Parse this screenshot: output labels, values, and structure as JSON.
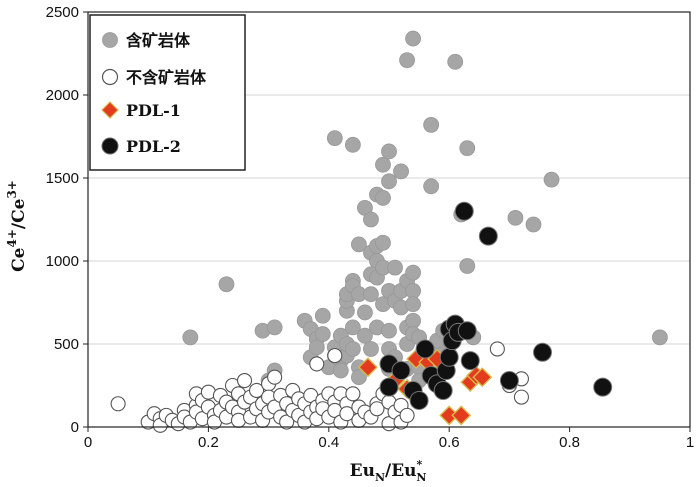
{
  "chart_data": {
    "type": "scatter",
    "xlim": [
      0,
      1
    ],
    "ylim": [
      0,
      2500
    ],
    "x_ticks": [
      0,
      0.2,
      0.4,
      0.6,
      0.8,
      1
    ],
    "x_tick_labels": [
      "0",
      "0.2",
      "0.4",
      "0.6",
      "0.8",
      "1"
    ],
    "y_ticks": [
      0,
      500,
      1000,
      1500,
      2000,
      2500
    ],
    "y_tick_labels": [
      "0",
      "500",
      "1000",
      "1500",
      "2000",
      "2500"
    ],
    "xlabel": {
      "main": "Eu",
      "sub1": "N",
      "slash": "/Eu",
      "sup": "*",
      "sub2": "N"
    },
    "ylabel": {
      "part1": "Ce",
      "sup1": "4+",
      "mid": "/Ce",
      "sup2": "3+"
    },
    "grid": "horizontal",
    "legend_position": "top-left",
    "colors": {
      "gray": "#a6a6a6",
      "white": "#ffffff",
      "diamond_fill": "#e23b1e",
      "diamond_edge": "#d9b94a",
      "black": "#111111"
    },
    "series": [
      {
        "name": "含矿岩体",
        "marker": "circle-gray",
        "points": [
          [
            0.17,
            540
          ],
          [
            0.23,
            860
          ],
          [
            0.29,
            580
          ],
          [
            0.31,
            600
          ],
          [
            0.31,
            340
          ],
          [
            0.3,
            280
          ],
          [
            0.36,
            640
          ],
          [
            0.37,
            590
          ],
          [
            0.38,
            530
          ],
          [
            0.37,
            420
          ],
          [
            0.38,
            480
          ],
          [
            0.39,
            560
          ],
          [
            0.39,
            670
          ],
          [
            0.4,
            360
          ],
          [
            0.41,
            1740
          ],
          [
            0.41,
            480
          ],
          [
            0.41,
            430
          ],
          [
            0.42,
            550
          ],
          [
            0.42,
            400
          ],
          [
            0.42,
            340
          ],
          [
            0.43,
            430
          ],
          [
            0.43,
            500
          ],
          [
            0.43,
            700
          ],
          [
            0.43,
            760
          ],
          [
            0.43,
            800
          ],
          [
            0.44,
            1700
          ],
          [
            0.44,
            880
          ],
          [
            0.44,
            850
          ],
          [
            0.44,
            600
          ],
          [
            0.44,
            470
          ],
          [
            0.45,
            360
          ],
          [
            0.45,
            300
          ],
          [
            0.45,
            1100
          ],
          [
            0.45,
            800
          ],
          [
            0.46,
            550
          ],
          [
            0.46,
            1320
          ],
          [
            0.46,
            690
          ],
          [
            0.47,
            1050
          ],
          [
            0.47,
            1250
          ],
          [
            0.47,
            920
          ],
          [
            0.47,
            800
          ],
          [
            0.47,
            470
          ],
          [
            0.48,
            1000
          ],
          [
            0.48,
            1090
          ],
          [
            0.48,
            900
          ],
          [
            0.48,
            600
          ],
          [
            0.48,
            1400
          ],
          [
            0.49,
            960
          ],
          [
            0.49,
            1110
          ],
          [
            0.49,
            1380
          ],
          [
            0.49,
            1580
          ],
          [
            0.49,
            740
          ],
          [
            0.5,
            1660
          ],
          [
            0.5,
            1480
          ],
          [
            0.5,
            820
          ],
          [
            0.5,
            580
          ],
          [
            0.5,
            470
          ],
          [
            0.5,
            350
          ],
          [
            0.51,
            760
          ],
          [
            0.51,
            960
          ],
          [
            0.51,
            420
          ],
          [
            0.52,
            1540
          ],
          [
            0.52,
            720
          ],
          [
            0.52,
            820
          ],
          [
            0.53,
            880
          ],
          [
            0.53,
            500
          ],
          [
            0.53,
            600
          ],
          [
            0.53,
            350
          ],
          [
            0.53,
            2210
          ],
          [
            0.54,
            2340
          ],
          [
            0.54,
            930
          ],
          [
            0.54,
            820
          ],
          [
            0.54,
            740
          ],
          [
            0.54,
            640
          ],
          [
            0.54,
            560
          ],
          [
            0.55,
            540
          ],
          [
            0.55,
            360
          ],
          [
            0.55,
            280
          ],
          [
            0.57,
            1450
          ],
          [
            0.57,
            1820
          ],
          [
            0.58,
            480
          ],
          [
            0.58,
            520
          ],
          [
            0.59,
            580
          ],
          [
            0.6,
            440
          ],
          [
            0.61,
            2200
          ],
          [
            0.62,
            1280
          ],
          [
            0.63,
            1680
          ],
          [
            0.63,
            970
          ],
          [
            0.64,
            540
          ],
          [
            0.71,
            1260
          ],
          [
            0.74,
            1220
          ],
          [
            0.77,
            1490
          ],
          [
            0.95,
            540
          ]
        ]
      },
      {
        "name": "不含矿岩体",
        "marker": "circle-white",
        "points": [
          [
            0.05,
            140
          ],
          [
            0.1,
            30
          ],
          [
            0.11,
            80
          ],
          [
            0.12,
            50
          ],
          [
            0.12,
            10
          ],
          [
            0.13,
            70
          ],
          [
            0.14,
            40
          ],
          [
            0.15,
            20
          ],
          [
            0.16,
            100
          ],
          [
            0.16,
            60
          ],
          [
            0.17,
            30
          ],
          [
            0.18,
            130
          ],
          [
            0.18,
            90
          ],
          [
            0.18,
            200
          ],
          [
            0.19,
            50
          ],
          [
            0.19,
            160
          ],
          [
            0.2,
            210
          ],
          [
            0.2,
            120
          ],
          [
            0.21,
            70
          ],
          [
            0.21,
            30
          ],
          [
            0.22,
            190
          ],
          [
            0.22,
            100
          ],
          [
            0.23,
            150
          ],
          [
            0.23,
            60
          ],
          [
            0.24,
            250
          ],
          [
            0.24,
            120
          ],
          [
            0.25,
            200
          ],
          [
            0.25,
            90
          ],
          [
            0.25,
            40
          ],
          [
            0.26,
            280
          ],
          [
            0.26,
            150
          ],
          [
            0.27,
            180
          ],
          [
            0.27,
            60
          ],
          [
            0.28,
            220
          ],
          [
            0.28,
            110
          ],
          [
            0.29,
            140
          ],
          [
            0.29,
            40
          ],
          [
            0.3,
            260
          ],
          [
            0.3,
            180
          ],
          [
            0.3,
            90
          ],
          [
            0.31,
            300
          ],
          [
            0.31,
            120
          ],
          [
            0.32,
            190
          ],
          [
            0.32,
            60
          ],
          [
            0.33,
            140
          ],
          [
            0.33,
            30
          ],
          [
            0.34,
            220
          ],
          [
            0.34,
            100
          ],
          [
            0.35,
            170
          ],
          [
            0.35,
            70
          ],
          [
            0.36,
            140
          ],
          [
            0.36,
            30
          ],
          [
            0.37,
            190
          ],
          [
            0.37,
            90
          ],
          [
            0.38,
            120
          ],
          [
            0.38,
            50
          ],
          [
            0.39,
            160
          ],
          [
            0.39,
            110
          ],
          [
            0.4,
            200
          ],
          [
            0.4,
            60
          ],
          [
            0.41,
            150
          ],
          [
            0.41,
            100
          ],
          [
            0.42,
            200
          ],
          [
            0.42,
            30
          ],
          [
            0.43,
            140
          ],
          [
            0.43,
            80
          ],
          [
            0.44,
            200
          ],
          [
            0.45,
            120
          ],
          [
            0.45,
            40
          ],
          [
            0.46,
            90
          ],
          [
            0.47,
            60
          ],
          [
            0.48,
            140
          ],
          [
            0.48,
            110
          ],
          [
            0.49,
            200
          ],
          [
            0.5,
            150
          ],
          [
            0.5,
            20
          ],
          [
            0.51,
            90
          ],
          [
            0.52,
            130
          ],
          [
            0.52,
            30
          ],
          [
            0.53,
            70
          ],
          [
            0.68,
            470
          ],
          [
            0.7,
            250
          ],
          [
            0.72,
            290
          ],
          [
            0.72,
            180
          ],
          [
            0.38,
            380
          ],
          [
            0.41,
            430
          ]
        ]
      },
      {
        "name": "PDL-1",
        "marker": "diamond",
        "points": [
          [
            0.465,
            360
          ],
          [
            0.51,
            280
          ],
          [
            0.53,
            230
          ],
          [
            0.54,
            200
          ],
          [
            0.545,
            410
          ],
          [
            0.565,
            390
          ],
          [
            0.58,
            410
          ],
          [
            0.6,
            70
          ],
          [
            0.62,
            70
          ],
          [
            0.635,
            270
          ],
          [
            0.645,
            310
          ],
          [
            0.655,
            300
          ]
        ]
      },
      {
        "name": "PDL-2",
        "marker": "circle-black",
        "points": [
          [
            0.5,
            380
          ],
          [
            0.5,
            240
          ],
          [
            0.52,
            340
          ],
          [
            0.54,
            220
          ],
          [
            0.55,
            160
          ],
          [
            0.56,
            470
          ],
          [
            0.57,
            310
          ],
          [
            0.58,
            260
          ],
          [
            0.59,
            220
          ],
          [
            0.595,
            340
          ],
          [
            0.6,
            420
          ],
          [
            0.6,
            590
          ],
          [
            0.605,
            520
          ],
          [
            0.61,
            620
          ],
          [
            0.615,
            570
          ],
          [
            0.63,
            580
          ],
          [
            0.635,
            400
          ],
          [
            0.625,
            1300
          ],
          [
            0.665,
            1150
          ],
          [
            0.7,
            280
          ],
          [
            0.755,
            450
          ],
          [
            0.855,
            240
          ]
        ]
      }
    ]
  }
}
